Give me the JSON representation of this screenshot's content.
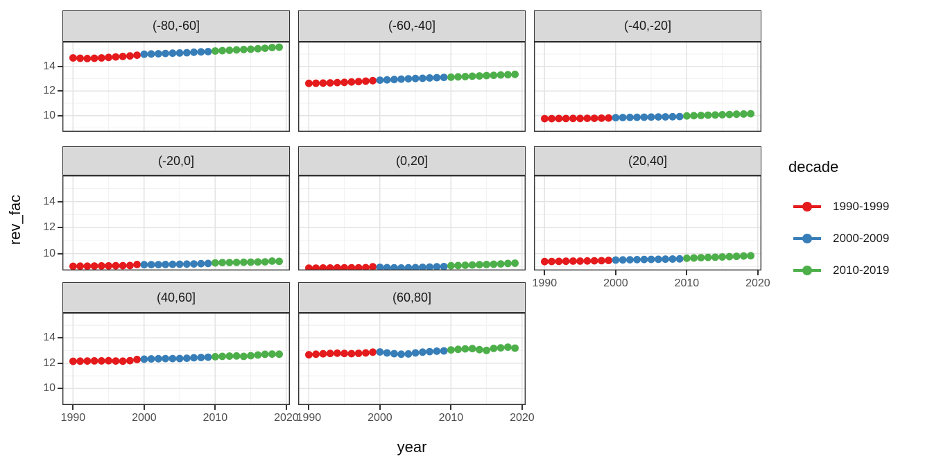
{
  "chart_data": {
    "type": "scatter",
    "title": "",
    "xlabel": "year",
    "ylabel": "rev_fac",
    "x_start_year": 1990,
    "x_end_year": 2019,
    "xlim": [
      1988.5,
      2020.5
    ],
    "ylim": [
      8.7,
      16.0
    ],
    "x_tick_labels": [
      "1990",
      "2000",
      "2010",
      "2020"
    ],
    "x_tick_values": [
      1990,
      2000,
      2010,
      2020
    ],
    "x_minor_values": [
      1995,
      2005,
      2015
    ],
    "y_tick_labels": [
      "10",
      "12",
      "14"
    ],
    "y_tick_values": [
      10,
      12,
      14
    ],
    "y_minor_values": [
      9,
      11,
      13,
      15
    ],
    "grid": "major+minor",
    "legend_position": "right",
    "legend": {
      "title": "decade",
      "entries": [
        {
          "label": "1990-1999",
          "color": "#E41A1C",
          "year_start": 1990,
          "year_end": 1999
        },
        {
          "label": "2000-2009",
          "color": "#377EB8",
          "year_start": 2000,
          "year_end": 2009
        },
        {
          "label": "2010-2019",
          "color": "#4DAF4A",
          "year_start": 2010,
          "year_end": 2019
        }
      ]
    },
    "facets": [
      {
        "label": "(-80,-60]",
        "values": [
          14.68,
          14.65,
          14.63,
          14.65,
          14.68,
          14.72,
          14.76,
          14.8,
          14.84,
          14.9,
          14.98,
          15.0,
          15.02,
          15.04,
          15.06,
          15.08,
          15.1,
          15.14,
          15.17,
          15.19,
          15.24,
          15.27,
          15.3,
          15.33,
          15.36,
          15.39,
          15.42,
          15.46,
          15.52,
          15.55
        ]
      },
      {
        "label": "(-60,-40]",
        "values": [
          12.62,
          12.63,
          12.64,
          12.66,
          12.68,
          12.7,
          12.73,
          12.76,
          12.8,
          12.84,
          12.88,
          12.9,
          12.93,
          12.96,
          12.99,
          13.01,
          13.03,
          13.06,
          13.08,
          13.1,
          13.12,
          13.15,
          13.17,
          13.2,
          13.22,
          13.25,
          13.27,
          13.3,
          13.32,
          13.35
        ]
      },
      {
        "label": "(-40,-20]",
        "values": [
          9.76,
          9.76,
          9.77,
          9.77,
          9.78,
          9.78,
          9.79,
          9.79,
          9.8,
          9.81,
          9.84,
          9.85,
          9.86,
          9.87,
          9.88,
          9.89,
          9.9,
          9.91,
          9.92,
          9.93,
          9.98,
          10.0,
          10.02,
          10.04,
          10.06,
          10.08,
          10.1,
          10.12,
          10.14,
          10.16
        ]
      },
      {
        "label": "(-20,0]",
        "values": [
          9.02,
          9.03,
          9.03,
          9.04,
          9.05,
          9.05,
          9.06,
          9.07,
          9.08,
          9.16,
          9.14,
          9.15,
          9.15,
          9.16,
          9.17,
          9.18,
          9.19,
          9.2,
          9.22,
          9.24,
          9.28,
          9.3,
          9.31,
          9.32,
          9.33,
          9.34,
          9.35,
          9.36,
          9.42,
          9.4
        ]
      },
      {
        "label": "(0,20]",
        "values": [
          8.88,
          8.88,
          8.89,
          8.89,
          8.9,
          8.9,
          8.91,
          8.91,
          8.92,
          8.98,
          8.94,
          8.92,
          8.9,
          8.89,
          8.9,
          8.92,
          8.94,
          8.96,
          8.98,
          9.0,
          9.06,
          9.08,
          9.1,
          9.12,
          9.14,
          9.16,
          9.18,
          9.2,
          9.24,
          9.26
        ]
      },
      {
        "label": "(20,40]",
        "values": [
          9.38,
          9.39,
          9.4,
          9.41,
          9.42,
          9.42,
          9.43,
          9.44,
          9.45,
          9.47,
          9.5,
          9.51,
          9.52,
          9.53,
          9.54,
          9.55,
          9.56,
          9.57,
          9.58,
          9.59,
          9.64,
          9.66,
          9.68,
          9.7,
          9.72,
          9.74,
          9.76,
          9.78,
          9.81,
          9.83
        ]
      },
      {
        "label": "(40,60]",
        "values": [
          12.16,
          12.17,
          12.18,
          12.19,
          12.19,
          12.2,
          12.18,
          12.17,
          12.21,
          12.3,
          12.33,
          12.35,
          12.36,
          12.37,
          12.37,
          12.38,
          12.4,
          12.44,
          12.46,
          12.48,
          12.52,
          12.55,
          12.57,
          12.58,
          12.55,
          12.6,
          12.66,
          12.71,
          12.73,
          12.72
        ]
      },
      {
        "label": "(60,80]",
        "values": [
          12.68,
          12.72,
          12.75,
          12.78,
          12.8,
          12.78,
          12.76,
          12.79,
          12.82,
          12.88,
          12.9,
          12.82,
          12.76,
          12.72,
          12.74,
          12.82,
          12.88,
          12.92,
          12.96,
          12.98,
          13.06,
          13.1,
          13.14,
          13.16,
          13.08,
          13.02,
          13.18,
          13.22,
          13.28,
          13.2
        ]
      }
    ],
    "theme_colors": {
      "strip_fill": "#d9d9d9",
      "panel_border": "#333333",
      "grid_major": "#e3e3e3",
      "grid_minor": "#f2f2f2",
      "tick_text": "#4d4d4d",
      "title_text": "#0d0d0d"
    }
  }
}
